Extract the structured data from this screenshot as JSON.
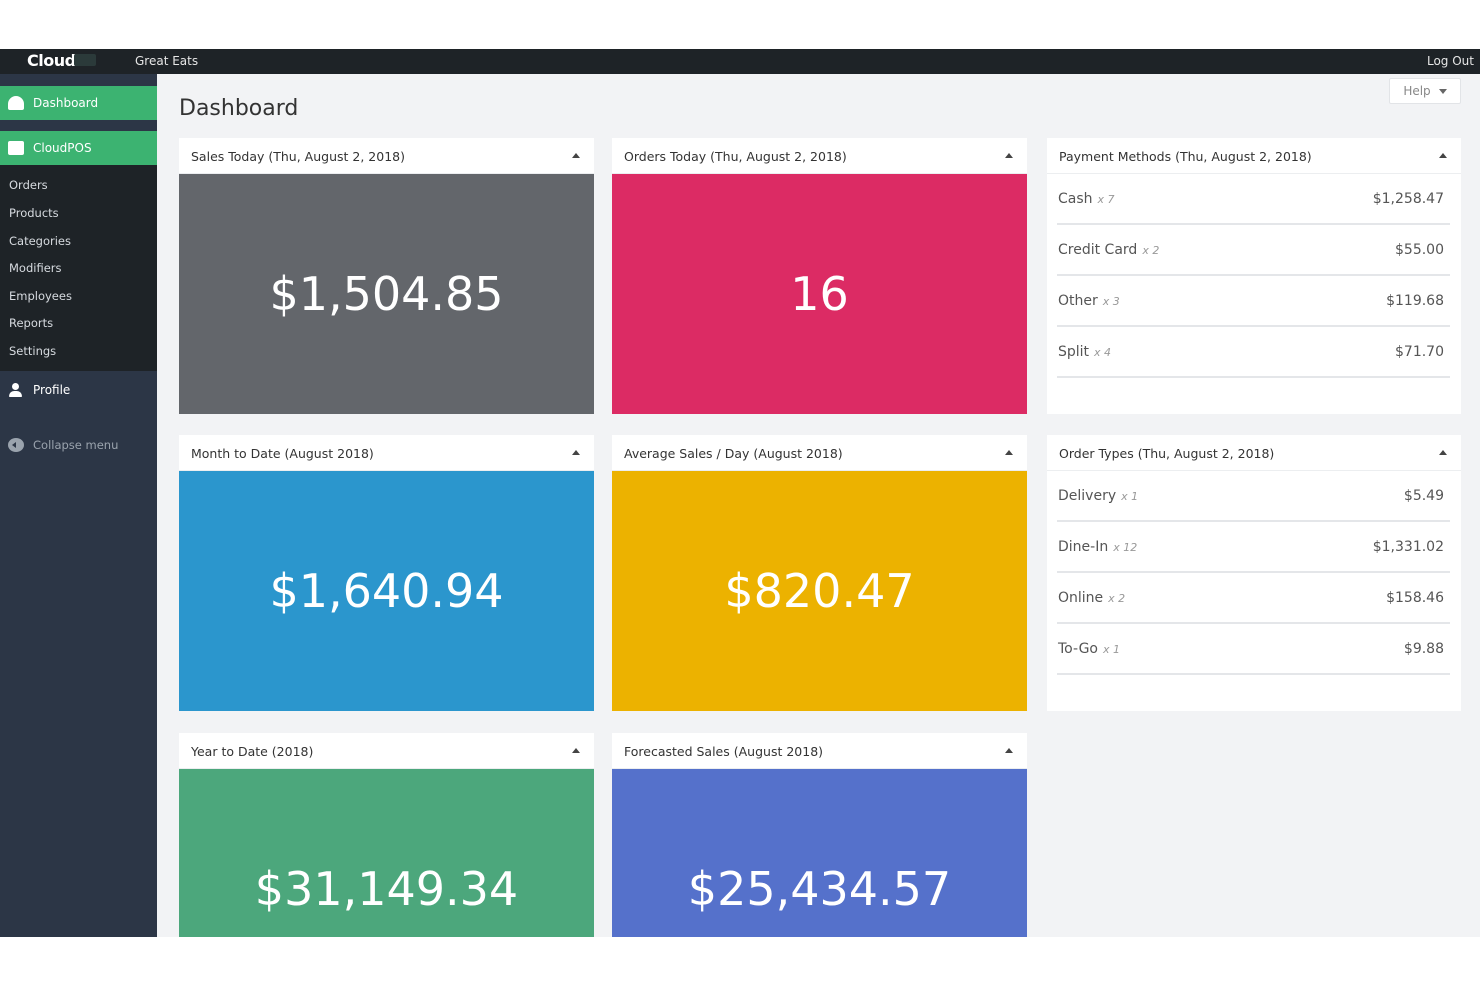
{
  "topbar": {
    "brand": "Cloud",
    "org": "Great Eats",
    "logout": "Log Out"
  },
  "sidebar": {
    "dashboard": "Dashboard",
    "cloudpos": "CloudPOS",
    "submenu": [
      "Orders",
      "Products",
      "Categories",
      "Modifiers",
      "Employees",
      "Reports",
      "Settings"
    ],
    "profile": "Profile",
    "collapse": "Collapse menu"
  },
  "main": {
    "title": "Dashboard",
    "help": "Help",
    "stats": [
      {
        "title": "Sales Today (Thu, August 2, 2018)",
        "value": "$1,504.85",
        "color": "#63666b"
      },
      {
        "title": "Orders Today (Thu, August 2, 2018)",
        "value": "16",
        "color": "#dc2b64"
      },
      {
        "title": "Month to Date (August 2018)",
        "value": "$1,640.94",
        "color": "#2b96cd"
      },
      {
        "title": "Average Sales / Day (August 2018)",
        "value": "$820.47",
        "color": "#ecb200"
      },
      {
        "title": "Year to Date (2018)",
        "value": "$31,149.34",
        "color": "#4ca77c"
      },
      {
        "title": "Forecasted Sales (August 2018)",
        "value": "$25,434.57",
        "color": "#5571cb"
      }
    ],
    "payment_methods": {
      "title": "Payment Methods (Thu, August 2, 2018)",
      "rows": [
        {
          "label": "Cash",
          "count": "x 7",
          "amount": "$1,258.47"
        },
        {
          "label": "Credit Card",
          "count": "x 2",
          "amount": "$55.00"
        },
        {
          "label": "Other",
          "count": "x 3",
          "amount": "$119.68"
        },
        {
          "label": "Split",
          "count": "x 4",
          "amount": "$71.70"
        }
      ]
    },
    "order_types": {
      "title": "Order Types (Thu, August 2, 2018)",
      "rows": [
        {
          "label": "Delivery",
          "count": "x 1",
          "amount": "$5.49"
        },
        {
          "label": "Dine-In",
          "count": "x 12",
          "amount": "$1,331.02"
        },
        {
          "label": "Online",
          "count": "x 2",
          "amount": "$158.46"
        },
        {
          "label": "To-Go",
          "count": "x 1",
          "amount": "$9.88"
        }
      ]
    }
  }
}
